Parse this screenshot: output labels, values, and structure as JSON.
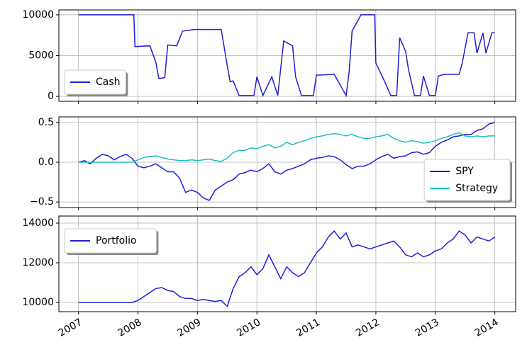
{
  "chart_data": [
    {
      "type": "line",
      "legend": "lower left",
      "grid": true,
      "show_xticklabels": false,
      "xlim": [
        2006.67,
        2014.35
      ],
      "xticks": [
        2007,
        2008,
        2009,
        2010,
        2011,
        2012,
        2013,
        2014
      ],
      "ylim": [
        -600,
        10600
      ],
      "yticks": [
        0,
        5000,
        10000
      ],
      "x": [
        2007.0,
        2007.93,
        2007.95,
        2008.2,
        2008.3,
        2008.35,
        2008.45,
        2008.5,
        2008.65,
        2008.75,
        2008.95,
        2009.4,
        2009.45,
        2009.5,
        2009.55,
        2009.6,
        2009.65,
        2009.7,
        2009.95,
        2010.0,
        2010.1,
        2010.25,
        2010.35,
        2010.45,
        2010.6,
        2010.65,
        2010.75,
        2010.95,
        2011.0,
        2011.3,
        2011.5,
        2011.55,
        2011.6,
        2011.75,
        2011.98,
        2012.0,
        2012.15,
        2012.25,
        2012.35,
        2012.4,
        2012.5,
        2012.55,
        2012.65,
        2012.75,
        2012.8,
        2012.9,
        2013.0,
        2013.05,
        2013.15,
        2013.4,
        2013.45,
        2013.55,
        2013.65,
        2013.7,
        2013.8,
        2013.85,
        2013.95,
        2014.0
      ],
      "series": [
        {
          "name": "Cash",
          "color": "#1f1fd6",
          "values": [
            10000,
            10000,
            6100,
            6200,
            4200,
            2200,
            2300,
            6300,
            6200,
            8000,
            8200,
            8200,
            6000,
            3800,
            1800,
            1900,
            1000,
            100,
            100,
            2400,
            100,
            2400,
            100,
            6800,
            6200,
            2400,
            100,
            100,
            2600,
            2700,
            100,
            3000,
            8000,
            10000,
            10000,
            4100,
            1800,
            100,
            100,
            7200,
            5500,
            3200,
            100,
            100,
            2500,
            100,
            100,
            2500,
            2700,
            2700,
            4000,
            7800,
            7800,
            5300,
            7800,
            5300,
            7800,
            7800
          ]
        }
      ]
    },
    {
      "type": "line",
      "legend": "lower right",
      "grid": true,
      "show_xticklabels": false,
      "xlim": [
        2006.67,
        2014.35
      ],
      "xticks": [
        2007,
        2008,
        2009,
        2010,
        2011,
        2012,
        2013,
        2014
      ],
      "ylim": [
        -0.57,
        0.57
      ],
      "yticks": [
        {
          "value": 0.5,
          "label": "0.5"
        },
        {
          "value": 0,
          "label": "0.0"
        },
        {
          "value": -0.5,
          "label": "−0.5"
        }
      ],
      "x": [
        2007.0,
        2007.1,
        2007.2,
        2007.3,
        2007.4,
        2007.5,
        2007.6,
        2007.7,
        2007.8,
        2007.9,
        2008.0,
        2008.1,
        2008.2,
        2008.3,
        2008.4,
        2008.5,
        2008.6,
        2008.7,
        2008.8,
        2008.9,
        2009.0,
        2009.1,
        2009.2,
        2009.3,
        2009.4,
        2009.5,
        2009.6,
        2009.7,
        2009.8,
        2009.9,
        2010.0,
        2010.1,
        2010.2,
        2010.3,
        2010.4,
        2010.5,
        2010.6,
        2010.7,
        2010.8,
        2010.9,
        2011.0,
        2011.1,
        2011.2,
        2011.3,
        2011.4,
        2011.5,
        2011.6,
        2011.7,
        2011.8,
        2011.9,
        2012.0,
        2012.1,
        2012.2,
        2012.3,
        2012.4,
        2012.5,
        2012.6,
        2012.7,
        2012.8,
        2012.9,
        2013.0,
        2013.1,
        2013.2,
        2013.3,
        2013.4,
        2013.5,
        2013.6,
        2013.7,
        2013.8,
        2013.9,
        2014.0
      ],
      "series": [
        {
          "name": "SPY",
          "color": "#1f1fd6",
          "values": [
            0.0,
            0.02,
            -0.02,
            0.05,
            0.1,
            0.08,
            0.03,
            0.07,
            0.1,
            0.05,
            -0.05,
            -0.07,
            -0.05,
            -0.02,
            -0.07,
            -0.12,
            -0.12,
            -0.2,
            -0.38,
            -0.35,
            -0.38,
            -0.45,
            -0.48,
            -0.35,
            -0.3,
            -0.25,
            -0.22,
            -0.15,
            -0.13,
            -0.1,
            -0.12,
            -0.08,
            -0.02,
            -0.12,
            -0.15,
            -0.1,
            -0.08,
            -0.05,
            -0.02,
            0.03,
            0.05,
            0.06,
            0.08,
            0.07,
            0.03,
            -0.03,
            -0.08,
            -0.05,
            -0.05,
            -0.02,
            0.03,
            0.07,
            0.1,
            0.05,
            0.07,
            0.08,
            0.12,
            0.13,
            0.1,
            0.12,
            0.2,
            0.25,
            0.28,
            0.32,
            0.33,
            0.35,
            0.35,
            0.4,
            0.42,
            0.48,
            0.5
          ]
        },
        {
          "name": "Strategy",
          "color": "#1fbfbf",
          "values": [
            0.0,
            0.0,
            0.0,
            0.0,
            0.0,
            0.0,
            0.0,
            0.0,
            0.0,
            0.0,
            0.03,
            0.06,
            0.07,
            0.08,
            0.06,
            0.04,
            0.03,
            0.02,
            0.02,
            0.03,
            0.02,
            0.03,
            0.04,
            0.02,
            0.01,
            0.05,
            0.12,
            0.15,
            0.15,
            0.18,
            0.17,
            0.2,
            0.22,
            0.18,
            0.2,
            0.25,
            0.22,
            0.25,
            0.27,
            0.3,
            0.32,
            0.33,
            0.35,
            0.36,
            0.35,
            0.33,
            0.35,
            0.32,
            0.3,
            0.3,
            0.32,
            0.33,
            0.35,
            0.3,
            0.27,
            0.25,
            0.27,
            0.26,
            0.24,
            0.25,
            0.27,
            0.3,
            0.32,
            0.35,
            0.37,
            0.33,
            0.32,
            0.33,
            0.32,
            0.33,
            0.33
          ]
        }
      ]
    },
    {
      "type": "line",
      "legend": "upper left",
      "grid": true,
      "show_xticklabels": true,
      "xlim": [
        2006.67,
        2014.35
      ],
      "xticks": [
        2007,
        2008,
        2009,
        2010,
        2011,
        2012,
        2013,
        2014
      ],
      "ylim": [
        9536,
        14357
      ],
      "yticks": [
        10000,
        12000,
        14000
      ],
      "x": [
        2007.0,
        2007.1,
        2007.2,
        2007.3,
        2007.4,
        2007.5,
        2007.6,
        2007.7,
        2007.8,
        2007.9,
        2008.0,
        2008.1,
        2008.2,
        2008.3,
        2008.4,
        2008.5,
        2008.6,
        2008.7,
        2008.8,
        2008.9,
        2009.0,
        2009.1,
        2009.2,
        2009.3,
        2009.4,
        2009.5,
        2009.6,
        2009.7,
        2009.8,
        2009.9,
        2010.0,
        2010.1,
        2010.2,
        2010.3,
        2010.4,
        2010.5,
        2010.6,
        2010.7,
        2010.8,
        2010.9,
        2011.0,
        2011.1,
        2011.2,
        2011.3,
        2011.4,
        2011.5,
        2011.6,
        2011.7,
        2011.8,
        2011.9,
        2012.0,
        2012.1,
        2012.2,
        2012.3,
        2012.4,
        2012.5,
        2012.6,
        2012.7,
        2012.8,
        2012.9,
        2013.0,
        2013.1,
        2013.2,
        2013.3,
        2013.4,
        2013.5,
        2013.6,
        2013.7,
        2013.8,
        2013.9,
        2014.0
      ],
      "series": [
        {
          "name": "Portfolio",
          "color": "#1f1fd6",
          "values": [
            10000,
            10000,
            10000,
            10000,
            10000,
            10000,
            10000,
            10000,
            10000,
            10000,
            10100,
            10300,
            10500,
            10700,
            10750,
            10600,
            10550,
            10300,
            10200,
            10200,
            10100,
            10150,
            10100,
            10050,
            10100,
            9800,
            10700,
            11300,
            11500,
            11800,
            11400,
            11700,
            12400,
            11800,
            11200,
            11800,
            11500,
            11300,
            11500,
            12000,
            12500,
            12800,
            13300,
            13600,
            13200,
            13500,
            12800,
            12900,
            12800,
            12700,
            12800,
            12900,
            13000,
            13100,
            12800,
            12400,
            12300,
            12500,
            12300,
            12400,
            12600,
            12700,
            13000,
            13200,
            13600,
            13400,
            13000,
            13300,
            13200,
            13100,
            13300
          ]
        }
      ]
    }
  ]
}
